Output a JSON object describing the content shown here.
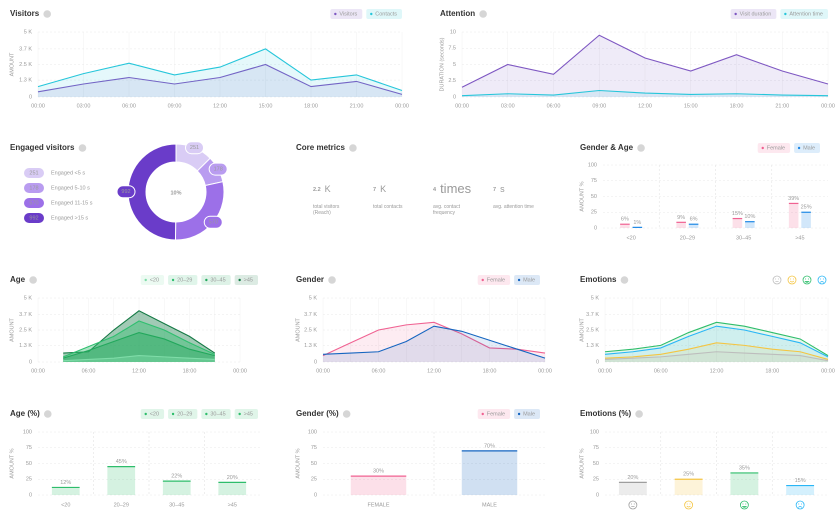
{
  "chart_data": [
    {
      "type": "line",
      "title": "Visitors",
      "y_label": "AMOUNT",
      "categories": [
        "00:00",
        "03:00",
        "06:00",
        "09:00",
        "12:00",
        "15:00",
        "18:00",
        "21:00",
        "00:00"
      ],
      "series": [
        {
          "name": "Visitors",
          "color": "#7e57c2",
          "values": [
            400,
            1000,
            1500,
            1000,
            1500,
            2500,
            800,
            1200,
            200
          ]
        },
        {
          "name": "Contacts",
          "color": "#26c6da",
          "values": [
            800,
            1800,
            2600,
            1700,
            2300,
            3700,
            1300,
            1700,
            500
          ]
        }
      ],
      "ylim": [
        0,
        5000
      ],
      "yticks": [
        0,
        {
          "value": 1300,
          "label": "1.3 K"
        },
        {
          "value": 2500,
          "label": "2.5 K"
        },
        {
          "value": 3700,
          "label": "3.7 K"
        },
        {
          "value": 5000,
          "label": "5 K"
        }
      ]
    },
    {
      "type": "line",
      "title": "Attention",
      "y_label": "DURATION (seconds)",
      "categories": [
        "00:00",
        "03:00",
        "06:00",
        "09:00",
        "12:00",
        "15:00",
        "18:00",
        "21:00",
        "00:00"
      ],
      "series": [
        {
          "name": "Visit duration",
          "color": "#7e57c2",
          "values": [
            1.5,
            5,
            3.5,
            9.5,
            6,
            4,
            6.5,
            4,
            2
          ]
        },
        {
          "name": "Attention time",
          "color": "#26c6da",
          "values": [
            0.2,
            0.5,
            0.3,
            1,
            0.6,
            0.4,
            0.5,
            0.3,
            0.2
          ]
        }
      ],
      "ylim": [
        0,
        10
      ],
      "yticks": [
        0,
        2.5,
        5,
        7.5,
        10
      ]
    },
    {
      "type": "pie",
      "title": "Engaged visitors",
      "center_label": "10%",
      "categories": [
        "Engaged <5 s",
        "Engaged 5-10 s",
        "Engaged 11-15 s",
        "Engaged >15 s"
      ],
      "values": [
        251,
        178,
        570,
        992
      ],
      "colors": [
        "#d9ccf5",
        "#b99cf0",
        "#9c70e8",
        "#6a3cc9"
      ]
    },
    {
      "type": "metrics",
      "title": "Core metrics",
      "items": [
        {
          "value": 2.2,
          "unit": "K",
          "label": "total visitors (Reach)",
          "color": "#5e35b1"
        },
        {
          "value": 7,
          "unit": "K",
          "label": "total contacts",
          "color": "#26c6da"
        },
        {
          "value": 4,
          "unit": "times",
          "label": "avg. contact frequency",
          "color": "#26c6da"
        },
        {
          "value": 7,
          "unit": "s",
          "label": "avg. attention time",
          "color": "#26c6da"
        }
      ]
    },
    {
      "type": "bar",
      "title": "Gender & Age",
      "y_label": "AMOUNT %",
      "categories": [
        "<20",
        "20–29",
        "30–45",
        ">45"
      ],
      "series": [
        {
          "name": "Female",
          "color": "#f06292",
          "values": [
            6,
            9,
            15,
            39
          ],
          "value_labels": [
            "6%",
            "9%",
            "15%",
            "39%"
          ]
        },
        {
          "name": "Male",
          "color": "#1e88e5",
          "values": [
            1,
            6,
            10,
            25
          ],
          "value_labels": [
            "1%",
            "6%",
            "10%",
            "25%"
          ]
        }
      ],
      "ylim": [
        0,
        100
      ],
      "yticks": [
        0,
        25,
        50,
        75,
        100
      ]
    },
    {
      "type": "line",
      "title": "Age",
      "y_label": "AMOUNT",
      "area_opacity": 0.4,
      "categories": [
        "00:00",
        null,
        "06:00",
        null,
        "12:00",
        null,
        "18:00",
        null,
        "00:00"
      ],
      "series": [
        {
          "name": ">45",
          "color": "#157a45",
          "values": [
            null,
            700,
            800,
            2500,
            4000,
            3000,
            2000,
            700,
            null
          ]
        },
        {
          "name": "20–29",
          "color": "#2fbf6f",
          "values": [
            null,
            400,
            1200,
            2000,
            3200,
            2500,
            1500,
            600,
            null
          ]
        },
        {
          "name": "30–45",
          "color": "#22a85c",
          "values": [
            null,
            300,
            900,
            1600,
            2300,
            1800,
            1000,
            500,
            null
          ]
        },
        {
          "name": "<20",
          "color": "#7fdca8",
          "values": [
            null,
            100,
            200,
            300,
            500,
            400,
            300,
            200,
            null
          ]
        }
      ],
      "legend_order": [
        "<20",
        "20–29",
        "30–45",
        ">45"
      ],
      "ylim": [
        0,
        5000
      ],
      "yticks": [
        0,
        {
          "value": 1300,
          "label": "1.3 K"
        },
        {
          "value": 2500,
          "label": "2.5 K"
        },
        {
          "value": 3700,
          "label": "3.7 K"
        },
        {
          "value": 5000,
          "label": "5 K"
        }
      ]
    },
    {
      "type": "line",
      "title": "Gender",
      "y_label": "AMOUNT",
      "categories": [
        "00:00",
        null,
        "06:00",
        null,
        "12:00",
        null,
        "18:00",
        null,
        "00:00"
      ],
      "series": [
        {
          "name": "Female",
          "color": "#f06292",
          "values": [
            500,
            1500,
            2500,
            2900,
            3100,
            2200,
            1100,
            1000,
            700
          ]
        },
        {
          "name": "Male",
          "color": "#1565c0",
          "values": [
            600,
            700,
            800,
            1600,
            2800,
            2400,
            1700,
            1000,
            300
          ]
        }
      ],
      "ylim": [
        0,
        5000
      ],
      "yticks": [
        0,
        {
          "value": 1300,
          "label": "1.3 K"
        },
        {
          "value": 2500,
          "label": "2.5 K"
        },
        {
          "value": 3700,
          "label": "3.7 K"
        },
        {
          "value": 5000,
          "label": "5 K"
        }
      ]
    },
    {
      "type": "line",
      "title": "Emotions",
      "y_label": "AMOUNT",
      "categories": [
        "00:00",
        null,
        "06:00",
        null,
        "12:00",
        null,
        "18:00",
        null,
        "00:00"
      ],
      "series": [
        {
          "color": "#2ebd6b",
          "values": [
            800,
            1000,
            1300,
            2300,
            3100,
            2800,
            2300,
            1800,
            500
          ]
        },
        {
          "color": "#29b6f6",
          "values": [
            600,
            800,
            1100,
            2000,
            2800,
            2500,
            2000,
            1500,
            400
          ]
        },
        {
          "color": "#f4c542",
          "values": [
            300,
            400,
            600,
            1000,
            1500,
            1300,
            1000,
            800,
            200
          ]
        },
        {
          "color": "#bdbdbd",
          "values": [
            200,
            300,
            400,
            600,
            800,
            700,
            600,
            500,
            100
          ]
        }
      ],
      "ylim": [
        0,
        5000
      ],
      "yticks": [
        0,
        {
          "value": 1300,
          "label": "1.3 K"
        },
        {
          "value": 2500,
          "label": "2.5 K"
        },
        {
          "value": 3700,
          "label": "3.7 K"
        },
        {
          "value": 5000,
          "label": "5 K"
        }
      ]
    },
    {
      "type": "bar",
      "title": "Age (%)",
      "y_label": "AMOUNT %",
      "categories": [
        "<20",
        "20–29",
        "30–45",
        ">45"
      ],
      "legend": [
        "<20",
        "20–29",
        "30–45",
        ">45"
      ],
      "values": [
        12,
        45,
        22,
        20
      ],
      "value_labels": [
        "12%",
        "45%",
        "22%",
        "20%"
      ],
      "colors": [
        "#2ebd6b",
        "#2ebd6b",
        "#2ebd6b",
        "#2ebd6b"
      ],
      "ylim": [
        0,
        100
      ],
      "yticks": [
        0,
        25,
        50,
        75,
        100
      ]
    },
    {
      "type": "bar",
      "title": "Gender (%)",
      "y_label": "AMOUNT %",
      "categories": [
        "FEMALE",
        "MALE"
      ],
      "legend": [
        "Female",
        "Male"
      ],
      "values": [
        30,
        70
      ],
      "value_labels": [
        "30%",
        "70%"
      ],
      "colors": [
        "#f06292",
        "#1565c0"
      ],
      "ylim": [
        0,
        100
      ],
      "yticks": [
        0,
        25,
        50,
        75,
        100
      ]
    },
    {
      "type": "bar",
      "title": "Emotions (%)",
      "y_label": "AMOUNT %",
      "values": [
        20,
        25,
        35,
        15
      ],
      "value_labels": [
        "20%",
        "25%",
        "35%",
        "15%"
      ],
      "colors": [
        "#9e9e9e",
        "#f4c542",
        "#2ebd6b",
        "#29b6f6"
      ],
      "ylim": [
        0,
        100
      ],
      "yticks": [
        0,
        25,
        50,
        75,
        100
      ]
    }
  ]
}
